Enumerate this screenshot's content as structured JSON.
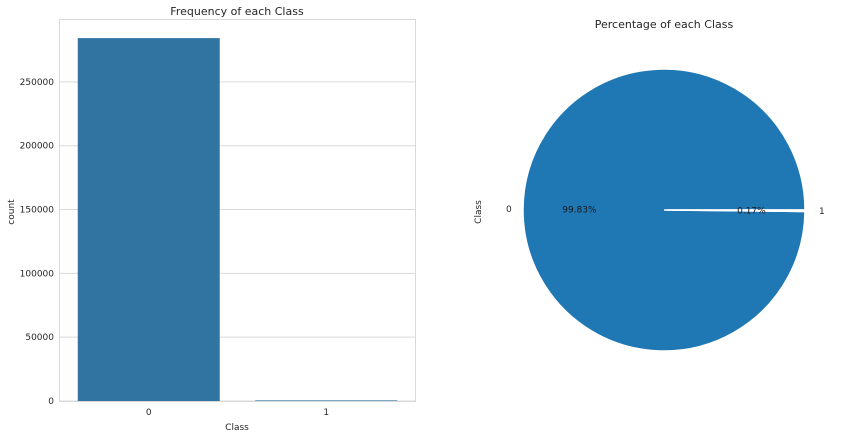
{
  "chart_data": [
    {
      "type": "bar",
      "title": "Frequency of each Class",
      "xlabel": "Class",
      "ylabel": "count",
      "categories": [
        "0",
        "1"
      ],
      "values": [
        284315,
        492
      ],
      "ylim": [
        0,
        298500
      ],
      "yticks": [
        0,
        50000,
        100000,
        150000,
        200000,
        250000
      ],
      "grid": "horizontal",
      "color": "#3274a1"
    },
    {
      "type": "pie",
      "title": "Percentage of each Class",
      "ylabel": "Class",
      "labels": [
        "0",
        "1"
      ],
      "values": [
        99.83,
        0.17
      ],
      "pct_labels": [
        "99.83%",
        "0.17%"
      ],
      "explode": [
        0,
        0.02
      ],
      "color": "#1f77b4"
    }
  ]
}
